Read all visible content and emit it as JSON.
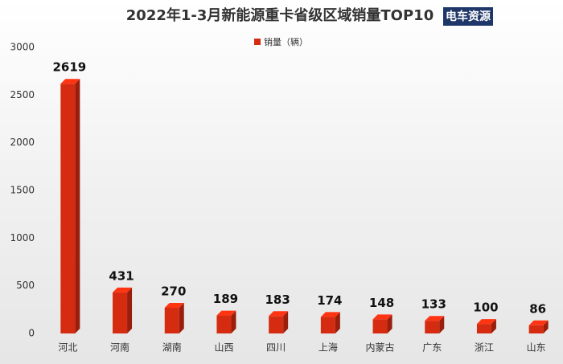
{
  "chart_data": {
    "type": "bar",
    "title": "2022年1-3月新能源重卡省级区域销量TOP10",
    "logo": "电车资源",
    "categories": [
      "河北",
      "河南",
      "湖南",
      "山西",
      "四川",
      "上海",
      "内蒙古",
      "广东",
      "浙江",
      "山东"
    ],
    "series": [
      {
        "name": "销量（辆）",
        "color": "#d52b10",
        "values": [
          2619,
          431,
          270,
          189,
          183,
          174,
          148,
          133,
          100,
          86
        ]
      }
    ],
    "ylim": [
      0,
      3000
    ],
    "yticks": [
      0,
      500,
      1000,
      1500,
      2000,
      2500,
      3000
    ],
    "grid": false
  }
}
